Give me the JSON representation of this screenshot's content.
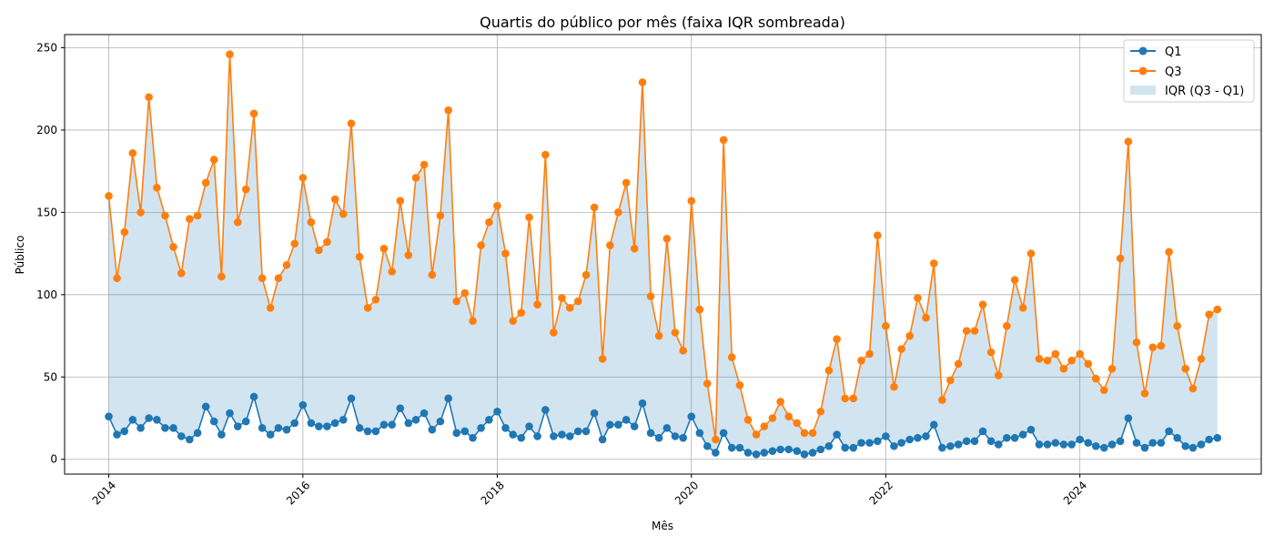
{
  "chart_data": {
    "type": "line",
    "title": "Quartis do público por mês (faixa IQR sombreada)",
    "xlabel": "Mês",
    "ylabel": "Público",
    "ylim": [
      -9,
      258
    ],
    "yticks": [
      0,
      50,
      100,
      150,
      200,
      250
    ],
    "xlim": [
      "2013-07-19",
      "2025-11-13"
    ],
    "xticks": [
      "2014",
      "2016",
      "2018",
      "2020",
      "2022",
      "2024"
    ],
    "grid": true,
    "legend_position": "top-right",
    "x_start": "2014-01",
    "x_end": "2025-06",
    "x_frequency": "monthly",
    "series": [
      {
        "name": "Q1",
        "color": "#1f77b4",
        "values": [
          26,
          15,
          17,
          24,
          19,
          25,
          24,
          19,
          19,
          14,
          12,
          16,
          32,
          23,
          15,
          28,
          20,
          23,
          38,
          19,
          15,
          19,
          18,
          22,
          33,
          22,
          20,
          20,
          22,
          24,
          37,
          19,
          17,
          17,
          21,
          21,
          31,
          22,
          24,
          28,
          18,
          23,
          37,
          16,
          17,
          13,
          19,
          24,
          29,
          19,
          15,
          13,
          20,
          14,
          30,
          14,
          15,
          14,
          17,
          17,
          28,
          12,
          21,
          21,
          24,
          20,
          34,
          16,
          13,
          19,
          14,
          13,
          26,
          16,
          8,
          4,
          16,
          7,
          7,
          4,
          3,
          4,
          5,
          6,
          6,
          5,
          3,
          4,
          6,
          8,
          15,
          7,
          7,
          10,
          10,
          11,
          14,
          8,
          10,
          12,
          13,
          14,
          21,
          7,
          8,
          9,
          11,
          11,
          17,
          11,
          9,
          13,
          13,
          15,
          18,
          9,
          9,
          10,
          9,
          9,
          12,
          10,
          8,
          7,
          9,
          11,
          25,
          10,
          7,
          10,
          10,
          17,
          13,
          8,
          7,
          9,
          12,
          13
        ]
      },
      {
        "name": "Q3",
        "color": "#ff7f0e",
        "values": [
          160,
          110,
          138,
          186,
          150,
          220,
          165,
          148,
          129,
          113,
          146,
          148,
          168,
          182,
          111,
          246,
          144,
          164,
          210,
          110,
          92,
          110,
          118,
          131,
          171,
          144,
          127,
          132,
          158,
          149,
          204,
          123,
          92,
          97,
          128,
          114,
          157,
          124,
          171,
          179,
          112,
          148,
          212,
          96,
          101,
          84,
          130,
          144,
          154,
          125,
          84,
          89,
          147,
          94,
          185,
          77,
          98,
          92,
          96,
          112,
          153,
          61,
          130,
          150,
          168,
          128,
          229,
          99,
          75,
          134,
          77,
          66,
          157,
          91,
          46,
          12,
          194,
          62,
          45,
          24,
          15,
          20,
          25,
          35,
          26,
          22,
          16,
          16,
          29,
          54,
          73,
          37,
          37,
          60,
          64,
          136,
          81,
          44,
          67,
          75,
          98,
          86,
          119,
          36,
          48,
          58,
          78,
          78,
          94,
          65,
          51,
          81,
          109,
          92,
          125,
          61,
          60,
          64,
          55,
          60,
          64,
          58,
          49,
          42,
          55,
          122,
          193,
          71,
          40,
          68,
          69,
          126,
          81,
          55,
          43,
          61,
          88,
          91
        ]
      }
    ],
    "band": {
      "name": "IQR (Q3 - Q1)",
      "color": "#1f77b4",
      "opacity": 0.2
    }
  }
}
